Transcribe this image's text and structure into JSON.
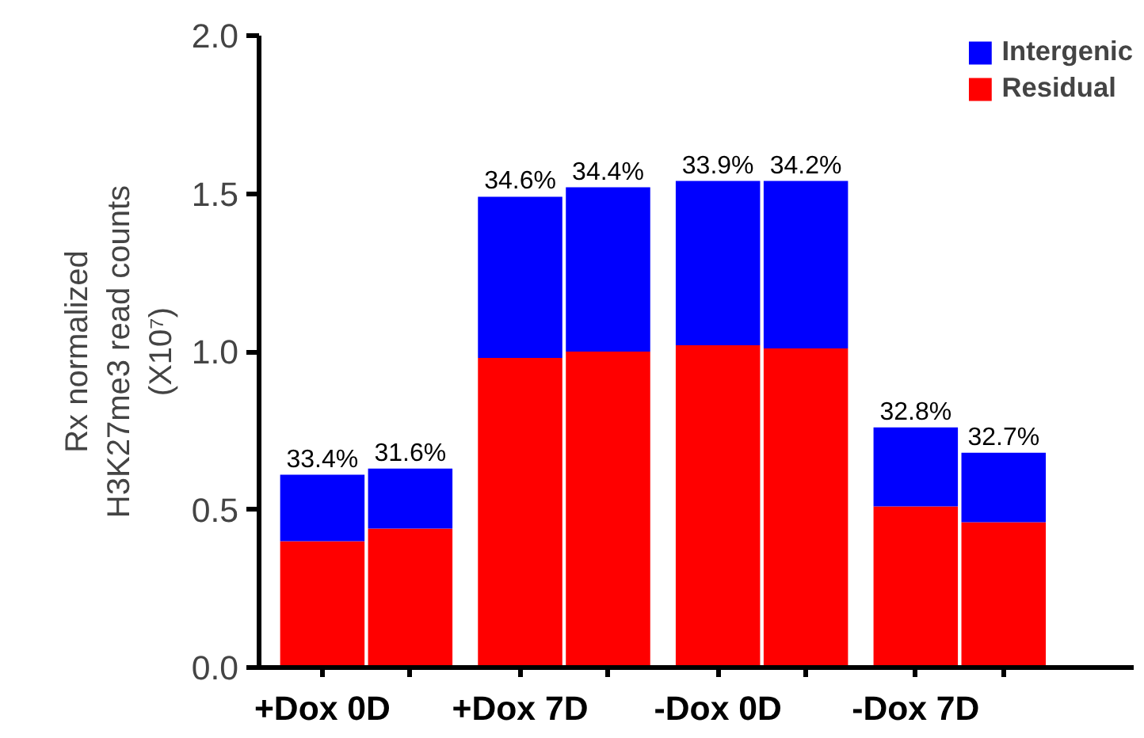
{
  "chart_data": {
    "type": "bar",
    "stacked": true,
    "ylabel": "Rx normalized\nH3K27me3 read counts\n(X10⁷)",
    "categories": [
      "+Dox 0D",
      null,
      "+Dox 7D",
      null,
      "-Dox 0D",
      null,
      "-Dox 7D",
      null
    ],
    "series": [
      {
        "name": "Residual",
        "color": "#ff0000",
        "values": [
          0.4,
          0.44,
          0.98,
          1.0,
          1.02,
          1.01,
          0.51,
          0.46
        ]
      },
      {
        "name": "Intergenic",
        "color": "#0000ff",
        "values": [
          0.21,
          0.19,
          0.51,
          0.52,
          0.52,
          0.53,
          0.25,
          0.22
        ]
      }
    ],
    "annotations": [
      "33.4%",
      "31.6%",
      "34.6%",
      "34.4%",
      "33.9%",
      "34.2%",
      "32.8%",
      "32.7%"
    ],
    "ylim": [
      0,
      2
    ],
    "yticks": [
      {
        "value": 0,
        "label": "0.0"
      },
      {
        "value": 0.5,
        "label": "0.5"
      },
      {
        "value": 1,
        "label": "1.0"
      },
      {
        "value": 1.5,
        "label": "1.5"
      },
      {
        "value": 2,
        "label": "2.0"
      }
    ],
    "legend": "top right",
    "grid": false
  }
}
